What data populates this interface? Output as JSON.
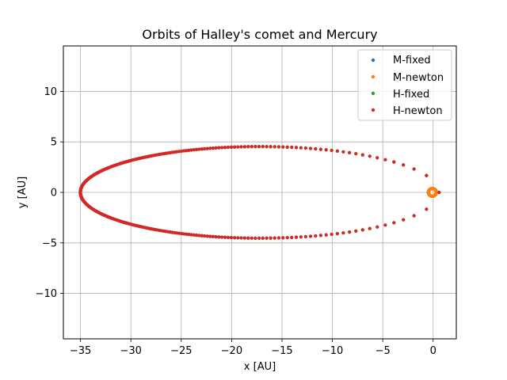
{
  "chart_data": {
    "type": "scatter",
    "title": "Orbits of Halley's comet and Mercury",
    "xlabel": "x [AU]",
    "ylabel": "y [AU]",
    "xlim": [
      -36.7,
      2.3
    ],
    "ylim": [
      -14.5,
      14.5
    ],
    "xticks": [
      -35,
      -30,
      -25,
      -20,
      -15,
      -10,
      -5,
      0
    ],
    "yticks": [
      -10,
      -5,
      0,
      5,
      10
    ],
    "xtick_labels": [
      "−35",
      "−30",
      "−25",
      "−20",
      "−15",
      "−10",
      "−5",
      "0"
    ],
    "ytick_labels": [
      "−10",
      "−5",
      "0",
      "5",
      "10"
    ],
    "grid": true,
    "legend_position": "top-right",
    "series": [
      {
        "name": "M-fixed",
        "color": "#1f77b4",
        "orbit": {
          "a": 0.387,
          "e": 0.206,
          "perihelion": "+x"
        },
        "point_count": 60
      },
      {
        "name": "M-newton",
        "color": "#ff7f0e",
        "orbit": {
          "a": 0.387,
          "e": 0.206,
          "perihelion": "+x"
        },
        "point_count": 60
      },
      {
        "name": "H-fixed",
        "color": "#2ca02c",
        "orbit": {
          "a": 17.8,
          "e": 0.967,
          "perihelion": "+x"
        },
        "point_count": 300
      },
      {
        "name": "H-newton",
        "color": "#d62728",
        "orbit": {
          "a": 17.8,
          "e": 0.967,
          "perihelion": "+x"
        },
        "point_count": 300
      }
    ]
  }
}
